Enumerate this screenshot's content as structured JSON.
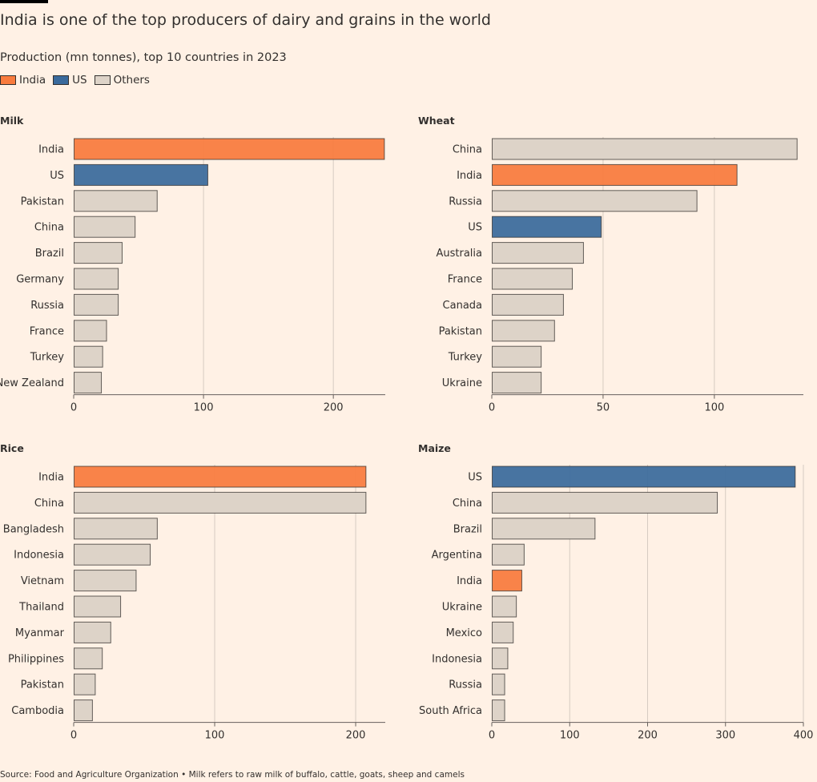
{
  "title": "India is one of the top producers of dairy and grains in the world",
  "subtitle": "Production (mn tonnes), top 10 countries in 2023",
  "legend": [
    {
      "label": "India",
      "color": "#f97b3d"
    },
    {
      "label": "US",
      "color": "#3a6a9c"
    },
    {
      "label": "Others",
      "color": "#ddd3c8"
    }
  ],
  "colors": {
    "India": "#f97b3d",
    "US": "#3a6a9c",
    "Others": "#ddd3c8",
    "grid": "#d6cbc2",
    "axis": "#66605c"
  },
  "source": "Source: Food and Agriculture Organization • Milk refers to raw milk of buffalo, cattle, goats, sheep and camels",
  "chart_data": [
    {
      "type": "bar",
      "title": "Milk",
      "categories": [
        "India",
        "US",
        "Pakistan",
        "China",
        "Brazil",
        "Germany",
        "Russia",
        "France",
        "Turkey",
        "New Zealand"
      ],
      "values": [
        239,
        103,
        64,
        47,
        37,
        34,
        34,
        25,
        22,
        21
      ],
      "xticks": [
        0,
        100,
        200
      ],
      "xlim": [
        0,
        240
      ]
    },
    {
      "type": "bar",
      "title": "Wheat",
      "categories": [
        "China",
        "India",
        "Russia",
        "US",
        "Australia",
        "France",
        "Canada",
        "Pakistan",
        "Turkey",
        "Ukraine"
      ],
      "values": [
        137,
        110,
        92,
        49,
        41,
        36,
        32,
        28,
        22,
        22
      ],
      "xticks": [
        0,
        50,
        100
      ],
      "xlim": [
        0,
        140
      ]
    },
    {
      "type": "bar",
      "title": "Rice",
      "categories": [
        "India",
        "China",
        "Bangladesh",
        "Indonesia",
        "Vietnam",
        "Thailand",
        "Myanmar",
        "Philippines",
        "Pakistan",
        "Cambodia"
      ],
      "values": [
        207,
        207,
        59,
        54,
        44,
        33,
        26,
        20,
        15,
        13
      ],
      "xticks": [
        0,
        100,
        200
      ],
      "xlim": [
        0,
        221
      ]
    },
    {
      "type": "bar",
      "title": "Maize",
      "categories": [
        "US",
        "China",
        "Brazil",
        "Argentina",
        "India",
        "Ukraine",
        "Mexico",
        "Indonesia",
        "Russia",
        "South Africa"
      ],
      "values": [
        389,
        289,
        132,
        41,
        38,
        31,
        27,
        20,
        16,
        16
      ],
      "xticks": [
        0,
        100,
        200,
        300,
        400
      ],
      "xlim": [
        0,
        400
      ]
    }
  ]
}
